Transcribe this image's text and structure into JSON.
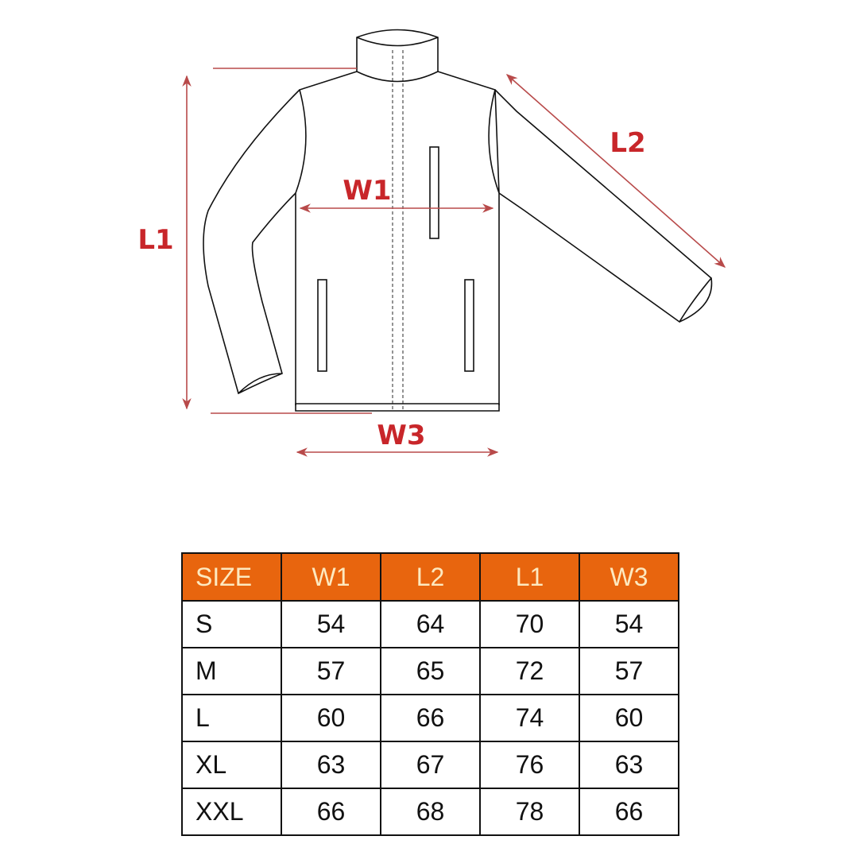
{
  "colors": {
    "accent": "#e8650e",
    "header_text": "#fde9c0",
    "dimension_label": "#c8262a",
    "dimension_line": "#b84a4a",
    "outline": "#111111"
  },
  "diagram": {
    "labels": {
      "l1": "L1",
      "l2": "L2",
      "w1": "W1",
      "w3": "W3"
    }
  },
  "size_table": {
    "headers": [
      "SIZE",
      "W1",
      "L2",
      "L1",
      "W3"
    ],
    "rows": [
      [
        "S",
        "54",
        "64",
        "70",
        "54"
      ],
      [
        "M",
        "57",
        "65",
        "72",
        "57"
      ],
      [
        "L",
        "60",
        "66",
        "74",
        "60"
      ],
      [
        "XL",
        "63",
        "67",
        "76",
        "63"
      ],
      [
        "XXL",
        "66",
        "68",
        "78",
        "66"
      ]
    ]
  }
}
